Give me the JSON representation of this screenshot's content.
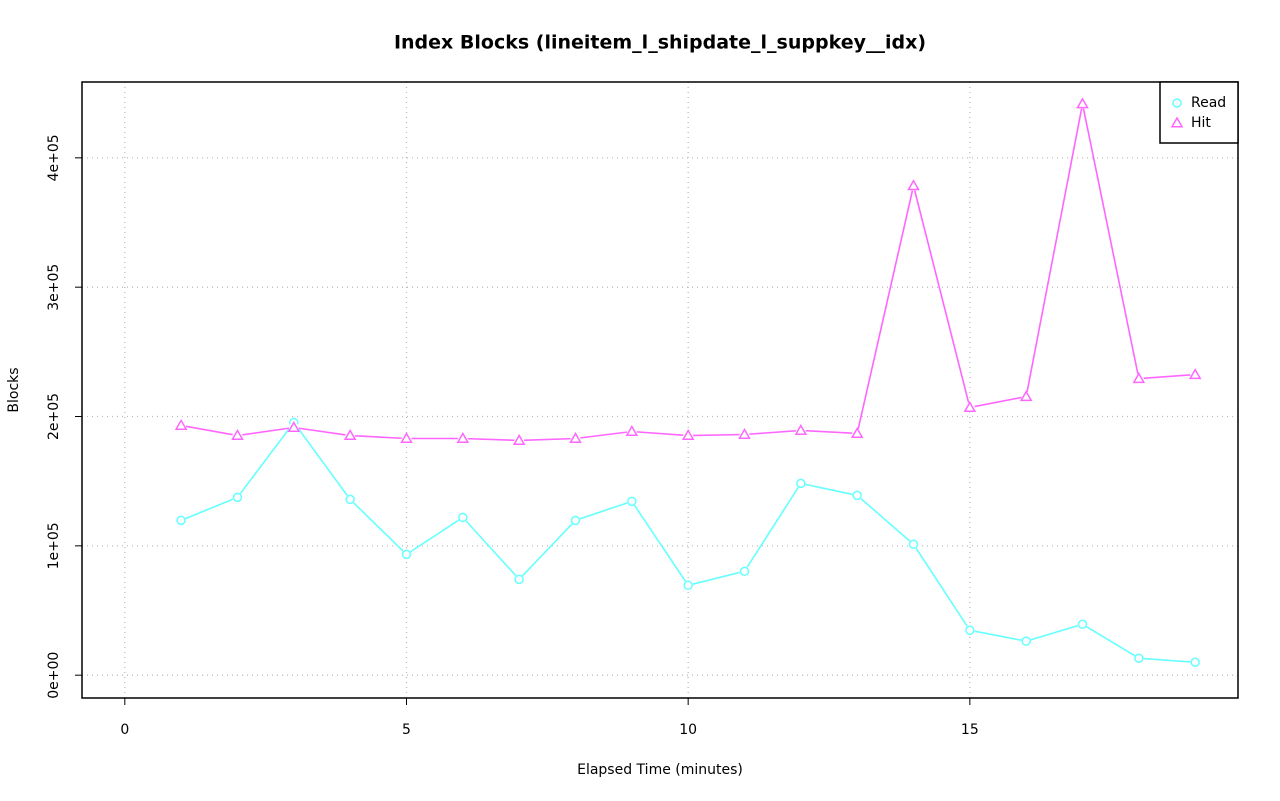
{
  "chart_data": {
    "type": "line",
    "title": "Index Blocks (lineitem_l_shipdate_l_suppkey__idx)",
    "x_label": "Elapsed Time (minutes)",
    "y_label": "Blocks",
    "x": [
      1,
      2,
      3,
      4,
      5,
      6,
      7,
      8,
      9,
      10,
      11,
      12,
      13,
      14,
      15,
      16,
      17,
      18,
      19
    ],
    "series": [
      {
        "name": "Read",
        "color": "#66ffff",
        "marker": "circle",
        "values": [
          119700,
          137500,
          195400,
          135900,
          93400,
          122000,
          74100,
          119700,
          134400,
          69500,
          80300,
          148300,
          139000,
          101200,
          34700,
          26300,
          39400,
          13100,
          10000
        ]
      },
      {
        "name": "Hit",
        "color": "#ff66ff",
        "marker": "triangle",
        "values": [
          193100,
          185300,
          191500,
          185300,
          183000,
          183000,
          181500,
          183000,
          188400,
          185300,
          186100,
          189200,
          186900,
          378400,
          207000,
          215400,
          441700,
          229300,
          232400
        ]
      }
    ],
    "xlim": [
      -0.76,
      19.76
    ],
    "xticks": [
      0,
      5,
      10,
      15
    ],
    "ylim": [
      -17640,
      458640
    ],
    "yticks": [
      {
        "value": 0,
        "label": "0e+00"
      },
      {
        "value": 100000,
        "label": "1e+05"
      },
      {
        "value": 200000,
        "label": "2e+05"
      },
      {
        "value": 300000,
        "label": "3e+05"
      },
      {
        "value": 400000,
        "label": "4e+05"
      }
    ],
    "grid": true,
    "legend_position": "top-right"
  }
}
